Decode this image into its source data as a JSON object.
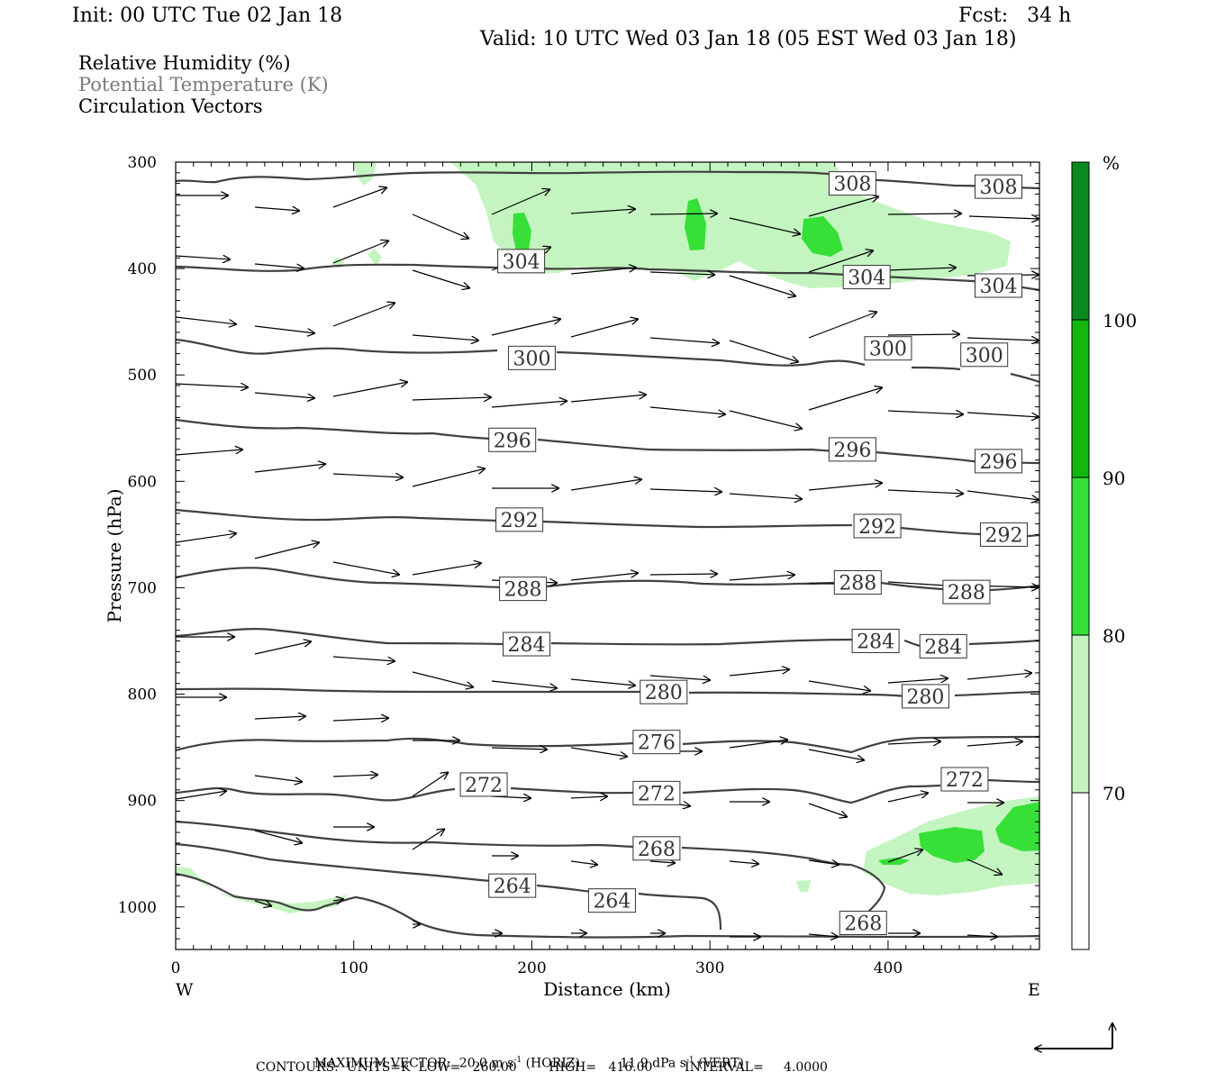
{
  "header": {
    "init": "Init: 00 UTC Tue 02 Jan 18",
    "fcst": "Fcst:   34 h",
    "valid": "Valid: 10 UTC Wed 03 Jan 18 (05 EST Wed 03 Jan 18)"
  },
  "legend_lines": {
    "rh": "Relative Humidity (%)",
    "theta": "Potential Temperature (K)",
    "vectors": "Circulation Vectors"
  },
  "footer": {
    "max_vector_label": "MAXIMUM VECTOR:",
    "horiz_value": "20.0 m s",
    "horiz_unit": "(HORIZ)",
    "vert_value": "11.9 dPa s",
    "vert_unit": "(VERT)",
    "exponent": "-1",
    "contours": "CONTOURS:  UNITS=K  LOW=   260.00        HIGH=   416.00        INTERVAL=     4.0000"
  },
  "colors": {
    "rh_70_80": "#c4f5c0",
    "rh_80_90": "#36e036",
    "rh_90_100": "#10b810",
    "rh_100": "#0a8a1e",
    "contour": "#404040",
    "vector": "#000000"
  },
  "chart_data": {
    "type": "cross-section",
    "ylabel": "Pressure (hPa)",
    "xlabel": "Distance (km)",
    "x_left_label": "W",
    "x_right_label": "E",
    "xlim": [
      0,
      485
    ],
    "ylim": [
      1040,
      300
    ],
    "y_scale": "linear, inverted",
    "x_ticks": [
      0,
      100,
      200,
      300,
      400
    ],
    "y_ticks": [
      300,
      400,
      500,
      600,
      700,
      800,
      900,
      1000
    ],
    "colorbar": {
      "unit": "%",
      "levels": [
        70,
        80,
        90,
        100
      ],
      "colors": [
        "#ffffff",
        "#c4f5c0",
        "#36e036",
        "#10b810",
        "#0a8a1e"
      ]
    },
    "theta_contour_labels": [
      {
        "value": "308",
        "x": 380,
        "p": 320
      },
      {
        "value": "308",
        "x": 462,
        "p": 323
      },
      {
        "value": "304",
        "x": 194,
        "p": 393
      },
      {
        "value": "304",
        "x": 388,
        "p": 408
      },
      {
        "value": "304",
        "x": 462,
        "p": 416
      },
      {
        "value": "300",
        "x": 200,
        "p": 484
      },
      {
        "value": "300",
        "x": 400,
        "p": 475
      },
      {
        "value": "300",
        "x": 454,
        "p": 481
      },
      {
        "value": "296",
        "x": 189,
        "p": 561
      },
      {
        "value": "296",
        "x": 380,
        "p": 570
      },
      {
        "value": "296",
        "x": 462,
        "p": 581
      },
      {
        "value": "292",
        "x": 193,
        "p": 636
      },
      {
        "value": "292",
        "x": 394,
        "p": 642
      },
      {
        "value": "292",
        "x": 465,
        "p": 650
      },
      {
        "value": "288",
        "x": 195,
        "p": 701
      },
      {
        "value": "288",
        "x": 383,
        "p": 695
      },
      {
        "value": "288",
        "x": 444,
        "p": 704
      },
      {
        "value": "284",
        "x": 197,
        "p": 753
      },
      {
        "value": "284",
        "x": 393,
        "p": 750
      },
      {
        "value": "284",
        "x": 431,
        "p": 755
      },
      {
        "value": "280",
        "x": 274,
        "p": 798
      },
      {
        "value": "280",
        "x": 421,
        "p": 802
      },
      {
        "value": "276",
        "x": 270,
        "p": 845
      },
      {
        "value": "272",
        "x": 173,
        "p": 885
      },
      {
        "value": "272",
        "x": 270,
        "p": 893
      },
      {
        "value": "272",
        "x": 443,
        "p": 880
      },
      {
        "value": "268",
        "x": 270,
        "p": 945
      },
      {
        "value": "268",
        "x": 386,
        "p": 1015
      },
      {
        "value": "264",
        "x": 189,
        "p": 980
      },
      {
        "value": "264",
        "x": 245,
        "p": 994
      }
    ],
    "max_vector": {
      "horiz": "20.0 m s-1",
      "vert": "11.9 dPa s-1"
    },
    "contours": {
      "units": "K",
      "low": 260.0,
      "high": 416.0,
      "interval": 4.0
    }
  }
}
